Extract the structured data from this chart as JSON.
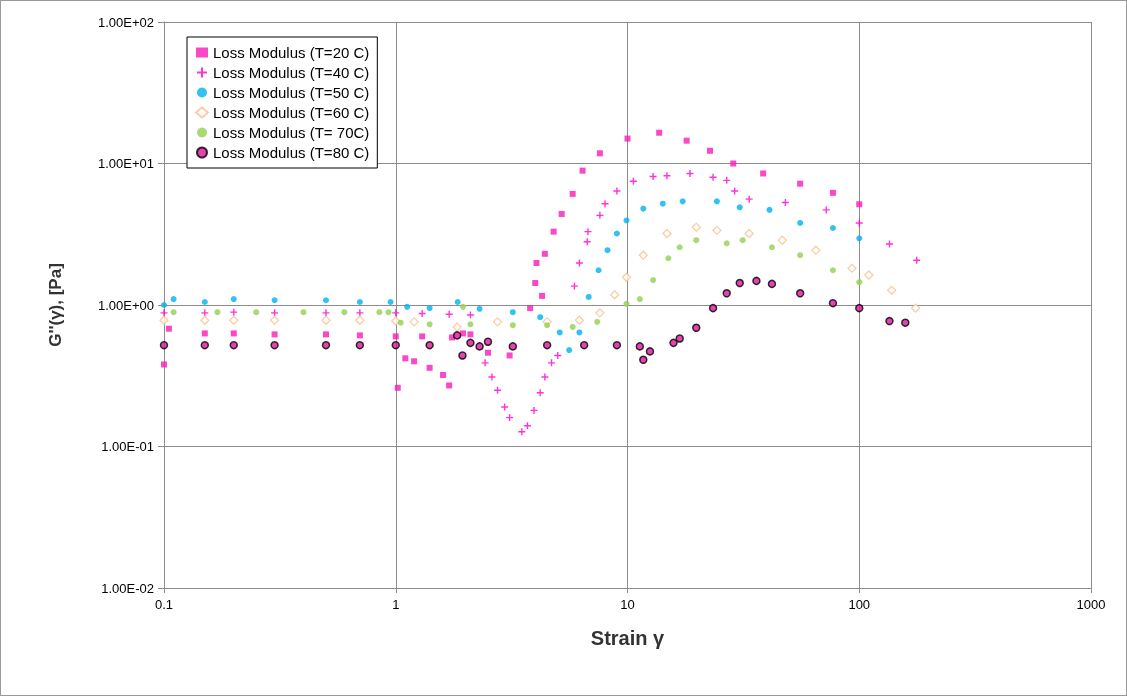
{
  "chart_data": {
    "type": "scatter",
    "xlabel": "Strain γ",
    "ylabel": "G''(γ), [Pa]",
    "log": "xy",
    "grid": true,
    "legend": "top left",
    "xlim": [
      0.1,
      1000
    ],
    "xticks": [
      0.1,
      1,
      10,
      100,
      1000
    ],
    "ylim": [
      0.01,
      100
    ],
    "yticks": [
      {
        "value": 0.01,
        "label": "1.00E-02"
      },
      {
        "value": 0.1,
        "label": "1.00E-01"
      },
      {
        "value": 1,
        "label": "1.00E+00"
      },
      {
        "value": 10,
        "label": "1.00E+01"
      },
      {
        "value": 100,
        "label": "1.00E+02"
      }
    ],
    "series": [
      {
        "name": "Loss Modulus (T=20 C)",
        "color": "#f81cb8",
        "marker": "square",
        "x": [
          0.1,
          0.105,
          0.15,
          0.2,
          0.3,
          0.5,
          0.7,
          1.0,
          1.02,
          1.1,
          1.2,
          1.3,
          1.4,
          1.6,
          1.7,
          1.75,
          1.95,
          2.1,
          2.5,
          3.1,
          3.8,
          4.0,
          4.05,
          4.28,
          4.4,
          4.8,
          5.2,
          5.8,
          6.4,
          7.6,
          10,
          13.7,
          18,
          22.7,
          28.6,
          38.5,
          55.6,
          77,
          100
        ],
        "values": [
          0.38,
          0.68,
          0.63,
          0.63,
          0.62,
          0.62,
          0.61,
          0.6,
          0.26,
          0.42,
          0.4,
          0.6,
          0.36,
          0.32,
          0.27,
          0.59,
          0.63,
          0.62,
          0.46,
          0.44,
          0.95,
          1.43,
          1.98,
          1.16,
          2.3,
          3.3,
          4.4,
          6.1,
          8.9,
          11.8,
          15,
          16.5,
          14.5,
          12.3,
          10,
          8.5,
          7.2,
          6.2,
          5.15
        ]
      },
      {
        "name": "Loss Modulus (T=40 C)",
        "color": "#ff00cc",
        "marker": "cross",
        "x": [
          0.1,
          0.15,
          0.2,
          0.3,
          0.5,
          0.7,
          1.0,
          1.3,
          1.7,
          2.1,
          2.43,
          2.6,
          2.75,
          2.95,
          3.1,
          3.5,
          3.7,
          3.95,
          4.2,
          4.4,
          4.7,
          5.0,
          5.9,
          6.2,
          6.7,
          6.75,
          7.6,
          8.0,
          9.0,
          10.6,
          12.9,
          14.8,
          18.6,
          23.4,
          26.8,
          29,
          33.5,
          48,
          72,
          100,
          135,
          177
        ],
        "values": [
          0.88,
          0.88,
          0.89,
          0.88,
          0.88,
          0.88,
          0.88,
          0.87,
          0.86,
          0.85,
          0.39,
          0.31,
          0.25,
          0.19,
          0.16,
          0.127,
          0.14,
          0.18,
          0.24,
          0.31,
          0.39,
          0.44,
          1.36,
          1.98,
          2.8,
          3.3,
          4.3,
          5.2,
          6.4,
          7.5,
          8.1,
          8.2,
          8.5,
          8.0,
          7.6,
          6.4,
          5.6,
          5.3,
          4.7,
          3.8,
          2.7,
          2.07
        ]
      },
      {
        "name": "Loss Modulus (T=50 C)",
        "color": "#00b0f0",
        "marker": "circle",
        "x": [
          0.1,
          0.11,
          0.15,
          0.2,
          0.3,
          0.5,
          0.7,
          0.95,
          1.12,
          1.4,
          1.85,
          2.3,
          3.2,
          4.2,
          5.1,
          5.6,
          6.2,
          6.8,
          7.5,
          8.2,
          9.0,
          9.9,
          11.7,
          14.2,
          17.3,
          24.3,
          30.5,
          41,
          55.6,
          77,
          100
        ],
        "values": [
          1.0,
          1.1,
          1.05,
          1.1,
          1.08,
          1.08,
          1.05,
          1.05,
          0.97,
          0.95,
          1.05,
          0.94,
          0.89,
          0.82,
          0.64,
          0.48,
          0.64,
          1.14,
          1.76,
          2.44,
          3.2,
          3.96,
          4.8,
          5.2,
          5.4,
          5.4,
          4.9,
          4.7,
          3.8,
          3.5,
          2.96
        ]
      },
      {
        "name": "Loss Modulus (T=60 C)",
        "color": "#fac090",
        "marker": "diamond",
        "x": [
          0.1,
          0.15,
          0.2,
          0.3,
          0.5,
          0.7,
          1.0,
          1.2,
          1.84,
          2.75,
          4.5,
          6.2,
          7.6,
          8.8,
          9.9,
          11.7,
          14.8,
          19.8,
          24.3,
          33.5,
          46.6,
          65,
          93,
          110,
          138,
          175
        ],
        "values": [
          0.78,
          0.78,
          0.78,
          0.78,
          0.78,
          0.78,
          0.77,
          0.76,
          0.7,
          0.76,
          0.76,
          0.78,
          0.88,
          1.18,
          1.57,
          2.25,
          3.2,
          3.54,
          3.37,
          3.2,
          2.87,
          2.44,
          1.82,
          1.63,
          1.27,
          0.95
        ]
      },
      {
        "name": "Loss Modulus (T= 70C)",
        "color": "#92d050",
        "marker": "circle",
        "x": [
          0.11,
          0.17,
          0.25,
          0.4,
          0.6,
          0.85,
          0.93,
          1.05,
          1.4,
          1.95,
          2.1,
          3.2,
          4.5,
          5.8,
          7.4,
          9.9,
          11.3,
          12.9,
          15,
          16.8,
          19.8,
          26.8,
          31.4,
          42,
          55.6,
          77,
          100
        ],
        "values": [
          0.89,
          0.89,
          0.89,
          0.89,
          0.89,
          0.89,
          0.89,
          0.75,
          0.73,
          0.97,
          0.73,
          0.72,
          0.72,
          0.7,
          0.76,
          1.02,
          1.1,
          1.5,
          2.14,
          2.56,
          2.87,
          2.73,
          2.87,
          2.56,
          2.25,
          1.76,
          1.45
        ]
      },
      {
        "name": "Loss Modulus (T=80 C)",
        "color": "#e0139f",
        "marker": "circle",
        "x": [
          0.1,
          0.15,
          0.2,
          0.3,
          0.5,
          0.7,
          1.0,
          1.4,
          1.84,
          1.94,
          2.1,
          2.3,
          2.5,
          3.2,
          4.5,
          6.5,
          9,
          11.3,
          11.7,
          12.5,
          15.8,
          16.8,
          19.8,
          23.4,
          26.8,
          30.5,
          36,
          42,
          55.6,
          77,
          100,
          135,
          158
        ],
        "values": [
          0.52,
          0.52,
          0.52,
          0.52,
          0.52,
          0.52,
          0.52,
          0.52,
          0.61,
          0.44,
          0.54,
          0.51,
          0.55,
          0.51,
          0.52,
          0.52,
          0.52,
          0.51,
          0.41,
          0.47,
          0.54,
          0.58,
          0.69,
          0.95,
          1.21,
          1.43,
          1.48,
          1.41,
          1.21,
          1.03,
          0.95,
          0.77,
          0.75
        ]
      }
    ]
  }
}
